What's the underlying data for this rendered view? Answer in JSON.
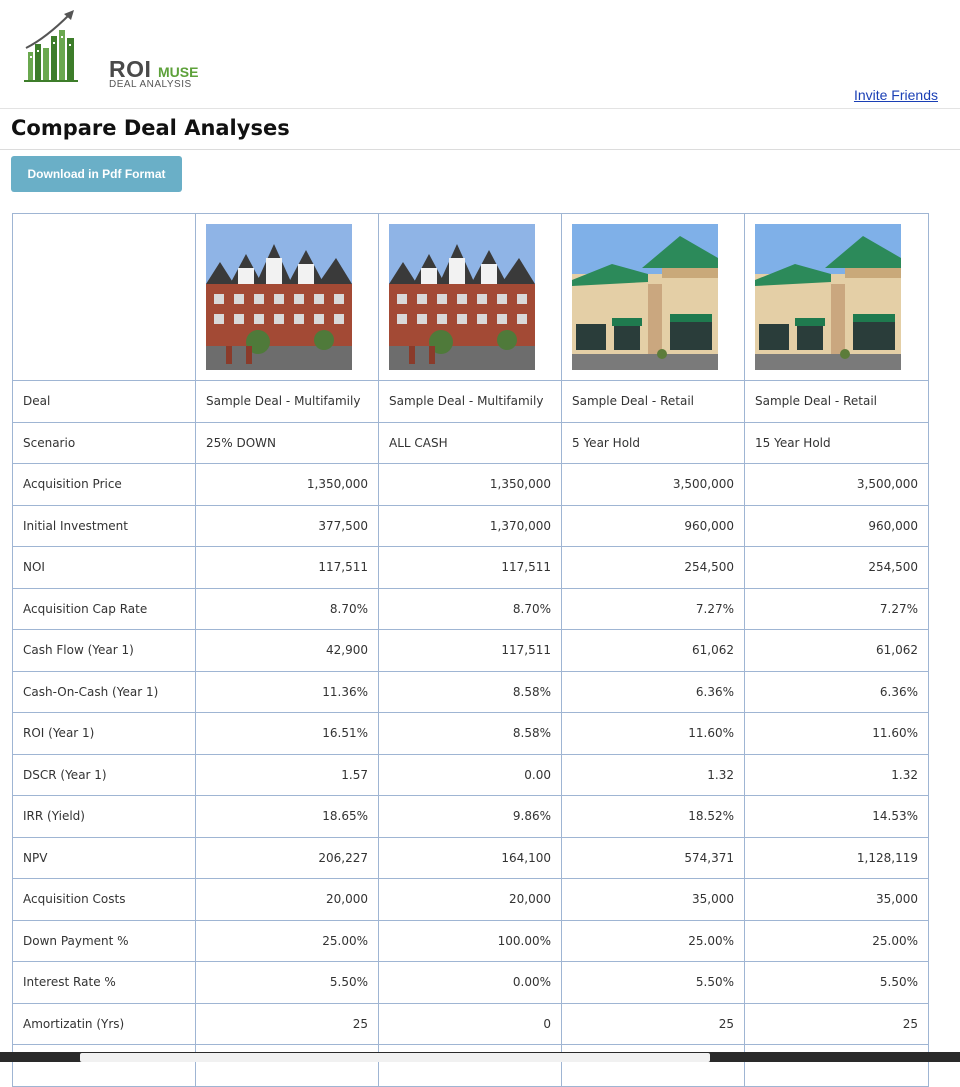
{
  "brand": {
    "name_main": "ROI",
    "name_accent": "MUSE",
    "tagline": "DEAL ANALYSIS"
  },
  "header": {
    "invite_link": "Invite Friends"
  },
  "page": {
    "title": "Compare Deal Analyses",
    "download_button": "Download in Pdf Format"
  },
  "columns": [
    {
      "image": "multifamily-building-image"
    },
    {
      "image": "multifamily-building-image"
    },
    {
      "image": "retail-building-image"
    },
    {
      "image": "retail-building-image"
    }
  ],
  "rows": [
    {
      "label": "Deal",
      "align": "left",
      "values": [
        "Sample Deal - Multifamily",
        "Sample Deal - Multifamily",
        "Sample Deal - Retail",
        "Sample Deal - Retail"
      ]
    },
    {
      "label": "Scenario",
      "align": "left",
      "values": [
        "25% DOWN",
        "ALL CASH",
        "5 Year Hold",
        "15 Year Hold"
      ]
    },
    {
      "label": "Acquisition Price",
      "values": [
        "1,350,000",
        "1,350,000",
        "3,500,000",
        "3,500,000"
      ]
    },
    {
      "label": "Initial Investment",
      "values": [
        "377,500",
        "1,370,000",
        "960,000",
        "960,000"
      ]
    },
    {
      "label": "NOI",
      "values": [
        "117,511",
        "117,511",
        "254,500",
        "254,500"
      ]
    },
    {
      "label": "Acquisition Cap Rate",
      "values": [
        "8.70%",
        "8.70%",
        "7.27%",
        "7.27%"
      ]
    },
    {
      "label": "Cash Flow (Year 1)",
      "values": [
        "42,900",
        "117,511",
        "61,062",
        "61,062"
      ]
    },
    {
      "label": "Cash-On-Cash (Year 1)",
      "values": [
        "11.36%",
        "8.58%",
        "6.36%",
        "6.36%"
      ]
    },
    {
      "label": "ROI (Year 1)",
      "values": [
        "16.51%",
        "8.58%",
        "11.60%",
        "11.60%"
      ]
    },
    {
      "label": "DSCR (Year 1)",
      "values": [
        "1.57",
        "0.00",
        "1.32",
        "1.32"
      ]
    },
    {
      "label": "IRR (Yield)",
      "values": [
        "18.65%",
        "9.86%",
        "18.52%",
        "14.53%"
      ]
    },
    {
      "label": "NPV",
      "values": [
        "206,227",
        "164,100",
        "574,371",
        "1,128,119"
      ]
    },
    {
      "label": "Acquisition Costs",
      "values": [
        "20,000",
        "20,000",
        "35,000",
        "35,000"
      ]
    },
    {
      "label": "Down Payment %",
      "values": [
        "25.00%",
        "100.00%",
        "25.00%",
        "25.00%"
      ]
    },
    {
      "label": "Interest Rate %",
      "values": [
        "5.50%",
        "0.00%",
        "5.50%",
        "5.50%"
      ]
    },
    {
      "label": "Amortizatin (Yrs)",
      "values": [
        "25",
        "0",
        "25",
        "25"
      ]
    },
    {
      "label": "",
      "values": [
        "",
        "",
        "",
        ""
      ]
    }
  ]
}
